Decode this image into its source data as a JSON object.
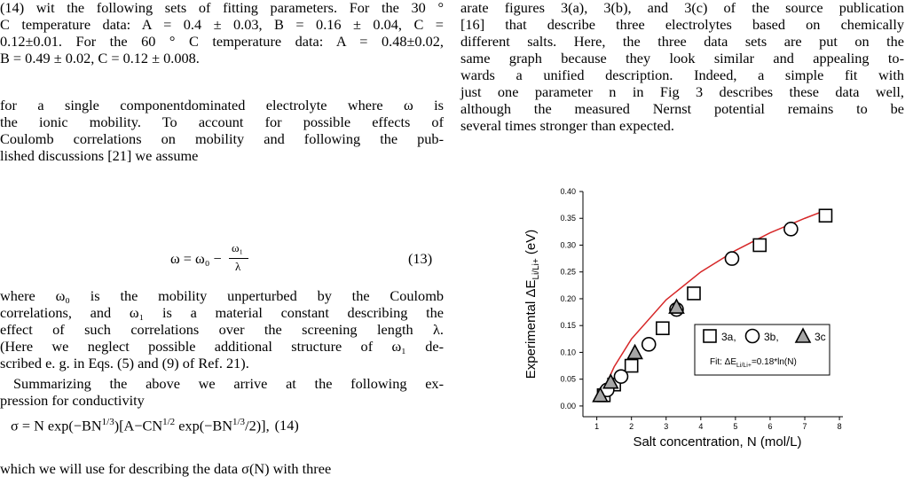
{
  "left_column": {
    "paragraph1": [
      "(14) wit the following sets of fitting parameters. For the 30 °",
      "C temperature data: A = 0.4 ± 0.03, B = 0.16 ± 0.04, C =",
      "0.12±0.01. For the 60 ° C temperature data: A = 0.48±0.02,",
      "B = 0.49 ± 0.02, C = 0.12 ± 0.008."
    ],
    "paragraph2": [
      "for a single componentdominated electrolyte where ω is",
      "the ionic mobility. To account for possible effects of",
      "Coulomb correlations on mobility and following the pub-",
      "lished discussions [21] we assume"
    ],
    "equation13": {
      "lhs": "ω = ω₀ −",
      "numerator": "ω₁",
      "denominator": "λ",
      "number": "(13)"
    },
    "paragraph3": [
      "where ω₀ is the mobility unperturbed by the Coulomb",
      "correlations, and ω₁ is a material constant describing the",
      "effect of such correlations over the screening length λ.",
      "(Here we neglect possible additional structure of ω₁ de-",
      "scribed e. g. in Eqs. (5) and (9) of Ref. 21)."
    ],
    "paragraph4": [
      "Summarizing the above we arrive at the following ex-",
      "pression for conductivity"
    ],
    "equation14": {
      "pieces": [
        "σ = N exp(−BN",
        "1/3",
        ")[A−CN",
        "1/2",
        " exp(−BN",
        "1/3",
        "/2)],"
      ],
      "number": "(14)"
    },
    "paragraph5": [
      "which we will use for describing the data σ(N) with three"
    ]
  },
  "right_column": {
    "paragraph1": [
      "arate figures 3(a), 3(b), and 3(c) of the source publication",
      "[16] that describe three electrolytes based on chemically",
      "different salts. Here, the three data sets are put on the",
      "same graph because they look similar and appealing to-",
      "wards a unified description. Indeed, a simple fit with",
      "just one parameter n in Fig 3 describes these data well,",
      "although the measured Nernst potential remains to be",
      "several times stronger than expected."
    ]
  },
  "chart_data": {
    "type": "scatter",
    "x_label": "Salt concentration, N (mol/L)",
    "y_label": {
      "main": "Experimental ΔE",
      "sub": "Li/Li+",
      "unit": " (eV)"
    },
    "xlim": [
      0.6,
      8.1
    ],
    "ylim": [
      -0.02,
      0.4
    ],
    "xticks": [
      1,
      2,
      3,
      4,
      5,
      6,
      7,
      8
    ],
    "yticks": [
      {
        "value": 0,
        "label": "0.00"
      },
      0.05,
      {
        "value": 0.1,
        "label": "0.10"
      },
      0.15,
      {
        "value": 0.2,
        "label": "0.20"
      },
      0.25,
      {
        "value": 0.3,
        "label": "0.30"
      },
      0.35,
      {
        "value": 0.4,
        "label": "0.40"
      }
    ],
    "series": [
      {
        "name": "3a,",
        "marker": "square",
        "color": "#ffffff",
        "x": [
          1.2,
          1.5,
          2.0,
          2.9,
          3.8,
          5.7,
          7.6
        ],
        "values": [
          0.02,
          0.04,
          0.075,
          0.145,
          0.21,
          0.3,
          0.355
        ]
      },
      {
        "name": "3b,",
        "marker": "circle",
        "color": "#ffffff",
        "x": [
          1.3,
          1.7,
          2.5,
          3.3,
          4.9,
          6.6
        ],
        "values": [
          0.03,
          0.055,
          0.115,
          0.18,
          0.275,
          0.33
        ]
      },
      {
        "name": "3c",
        "marker": "triangle",
        "color": "#a6a6a6",
        "x": [
          1.1,
          1.4,
          2.1,
          3.3
        ],
        "values": [
          0.02,
          0.045,
          0.1,
          0.185
        ]
      }
    ],
    "fit": {
      "label": {
        "main": "Fit: ΔE",
        "sub": "Li/Li+",
        "rest": "=0.18*ln(N)"
      },
      "color": "#d62728",
      "x": [
        1.05,
        1.5,
        2,
        3,
        4,
        5,
        6,
        7,
        7.6
      ],
      "values": [
        0.009,
        0.073,
        0.125,
        0.198,
        0.25,
        0.29,
        0.323,
        0.35,
        0.365
      ]
    }
  }
}
